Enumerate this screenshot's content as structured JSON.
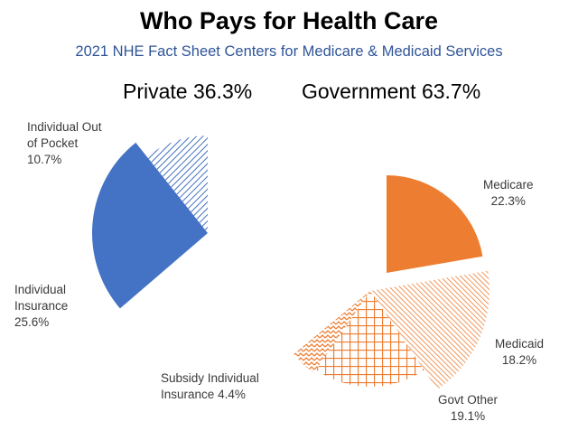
{
  "colors": {
    "private": "#4472c4",
    "government": "#ed7d31",
    "title": "#000000",
    "subtitle": "#2f5597"
  },
  "chart_data": {
    "type": "pie",
    "title": "Who Pays for Health Care",
    "subtitle": "2021 NHE Fact Sheet Centers for Medicare & Medicaid Services",
    "groups": [
      {
        "name": "Private",
        "label": "Private 36.3%",
        "total": 36.3
      },
      {
        "name": "Government",
        "label": "Government 63.7%",
        "total": 63.7
      }
    ],
    "slices": [
      {
        "name": "Individual Out of Pocket",
        "label": "Individual Out\nof Pocket",
        "value": 10.7,
        "value_label": "10.7%",
        "group": "Private",
        "fill": "hatch-diagonal"
      },
      {
        "name": "Individual Insurance",
        "label": "Individual\nInsurance",
        "value": 25.6,
        "value_label": "25.6%",
        "group": "Private",
        "fill": "solid"
      },
      {
        "name": "Medicare",
        "label": "Medicare",
        "value": 22.3,
        "value_label": "22.3%",
        "group": "Government",
        "fill": "solid"
      },
      {
        "name": "Medicaid",
        "label": "Medicaid",
        "value": 18.2,
        "value_label": "18.2%",
        "group": "Government",
        "fill": "hatch-lines"
      },
      {
        "name": "Govt Other",
        "label": "Govt Other",
        "value": 19.1,
        "value_label": "19.1%",
        "group": "Government",
        "fill": "hatch-grid"
      },
      {
        "name": "Subsidy Individual Insurance",
        "label": "Subsidy Individual\nInsurance",
        "value": 4.4,
        "value_label": "4.4%",
        "group": "Government",
        "fill": "hatch-zigzag"
      }
    ]
  }
}
